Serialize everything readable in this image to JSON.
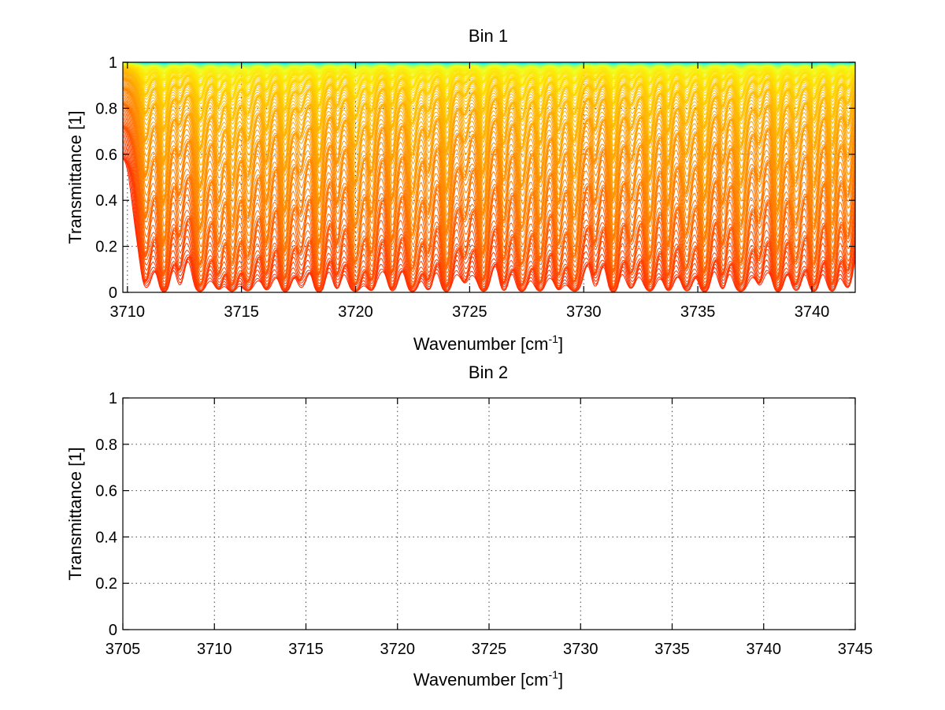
{
  "chart_data": [
    {
      "type": "line",
      "title": "Bin 1",
      "xlabel": "Wavenumber [cm",
      "xlabel_sup": "-1",
      "xlabel_end": "]",
      "ylabel": "Transmittance [1]",
      "xlim": [
        3709.8,
        3741.9
      ],
      "ylim": [
        0,
        1
      ],
      "xticks": [
        3710,
        3715,
        3720,
        3725,
        3730,
        3735,
        3740
      ],
      "yticks": [
        0,
        0.2,
        0.4,
        0.6,
        0.8,
        1
      ],
      "ytick_labels": [
        "0",
        "0.2",
        "0.4",
        "0.6",
        "0.8",
        "1"
      ],
      "grid": true,
      "series_count": 140,
      "colormap": [
        "#ff2a00",
        "#ff7a00",
        "#ffb000",
        "#ffe000",
        "#f0ff20",
        "#60ffa0",
        "#00e0ff"
      ],
      "absorption_line_centers": [
        3710.8,
        3711.6,
        3712.3,
        3713.2,
        3714.0,
        3714.6,
        3715.3,
        3716.1,
        3716.9,
        3717.6,
        3718.4,
        3719.2,
        3720.0,
        3720.7,
        3721.6,
        3722.5,
        3723.2,
        3724.0,
        3724.8,
        3725.6,
        3726.5,
        3727.3,
        3728.1,
        3728.9,
        3729.6,
        3730.5,
        3731.3,
        3732.1,
        3732.9,
        3733.7,
        3734.5,
        3735.3,
        3736.1,
        3736.9,
        3737.7,
        3738.5,
        3739.3,
        3740.1,
        3740.9,
        3741.6
      ]
    },
    {
      "type": "line",
      "title": "Bin 2",
      "xlabel": "Wavenumber [cm",
      "xlabel_sup": "-1",
      "xlabel_end": "]",
      "ylabel": "Transmittance [1]",
      "xlim": [
        3705,
        3745
      ],
      "ylim": [
        0,
        1
      ],
      "xticks": [
        3705,
        3710,
        3715,
        3720,
        3725,
        3730,
        3735,
        3740,
        3745
      ],
      "yticks": [
        0,
        0.2,
        0.4,
        0.6,
        0.8,
        1
      ],
      "ytick_labels": [
        "0",
        "0.2",
        "0.4",
        "0.6",
        "0.8",
        "1"
      ],
      "grid": true,
      "series_count": 0
    }
  ]
}
